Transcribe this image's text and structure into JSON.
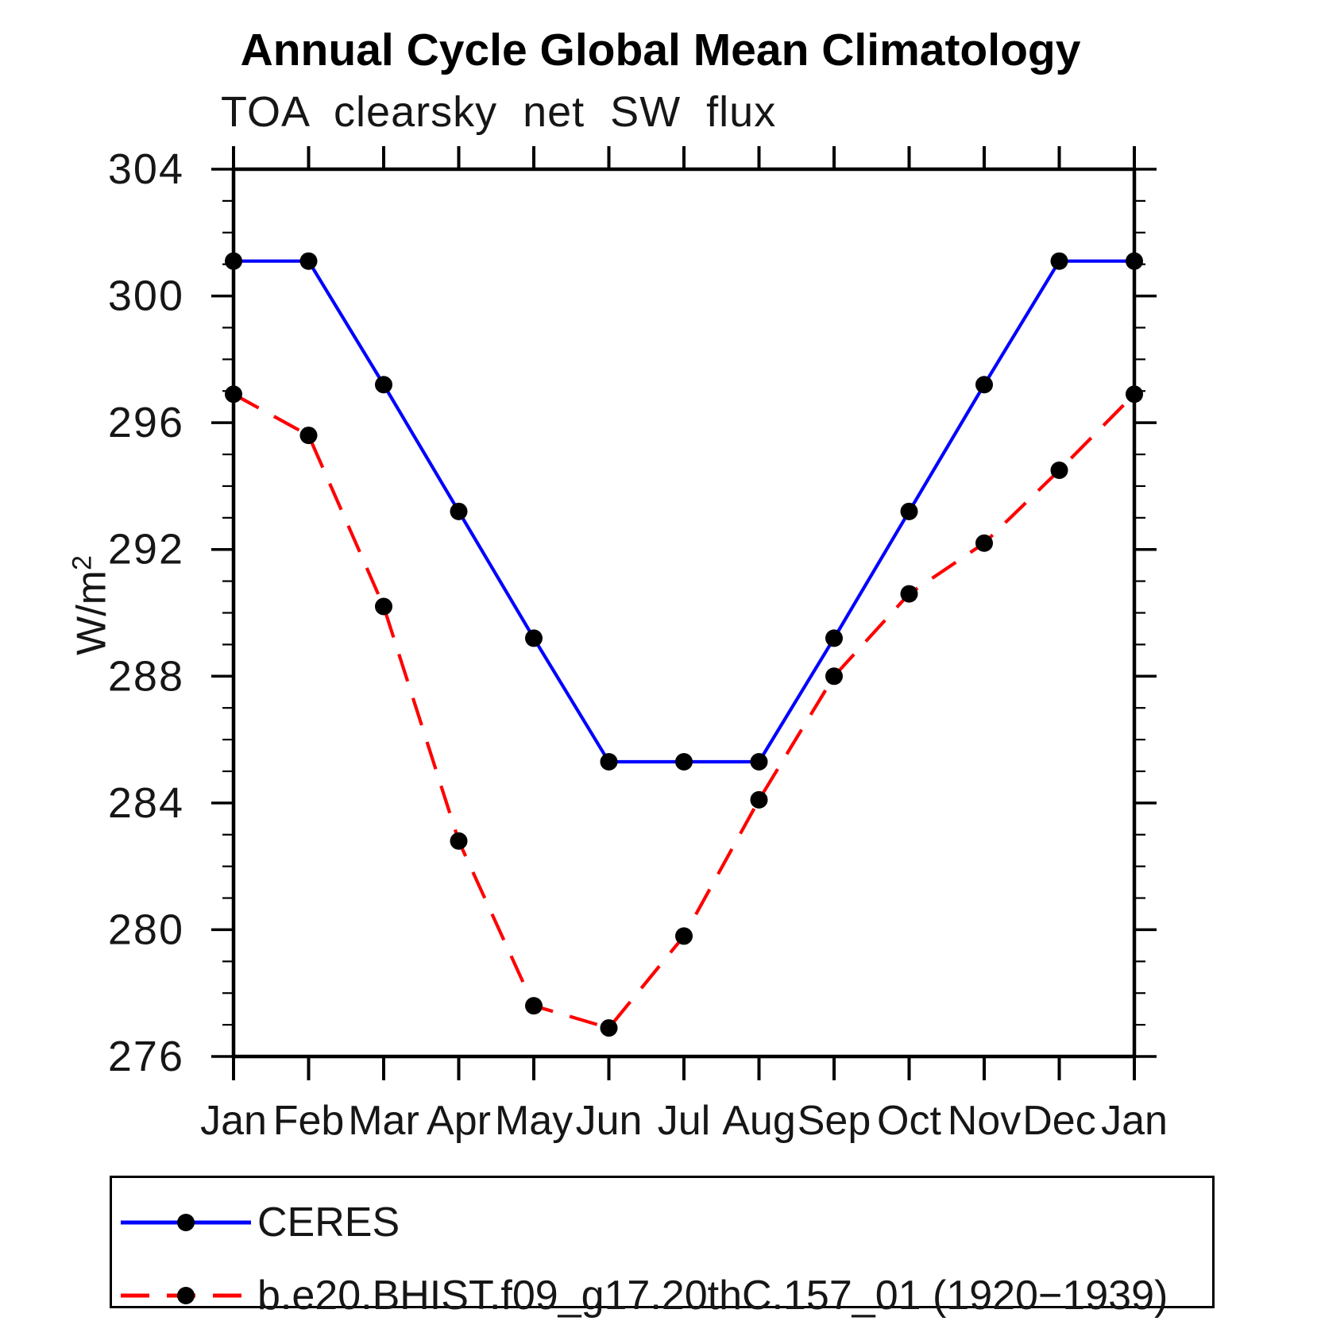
{
  "chart_data": {
    "type": "line",
    "title": "Annual Cycle Global Mean Climatology",
    "subtitle": "TOA clearsky net SW flux",
    "ylabel_base": "W/m",
    "ylabel_exponent": "2",
    "xlabel": "",
    "categories": [
      "Jan",
      "Feb",
      "Mar",
      "Apr",
      "May",
      "Jun",
      "Jul",
      "Aug",
      "Sep",
      "Oct",
      "Nov",
      "Dec",
      "Jan"
    ],
    "ylim": [
      276,
      304
    ],
    "ytick_major_interval": 4,
    "ytick_minor_interval": 1,
    "ytick_labels": [
      "276",
      "280",
      "284",
      "288",
      "292",
      "296",
      "300",
      "304"
    ],
    "grid": false,
    "legend_position": "bottom",
    "marker_color": "#000000",
    "series": [
      {
        "name": "CERES",
        "color": "#0000ff",
        "line_style": "solid",
        "marker": "filled-circle",
        "values": [
          301.1,
          301.1,
          297.2,
          293.2,
          289.2,
          285.3,
          285.3,
          285.3,
          289.2,
          293.2,
          297.2,
          301.1,
          301.1
        ]
      },
      {
        "name": "b.e20.BHIST.f09_g17.20thC.157_01 (1920−1939)",
        "color": "#ff0000",
        "line_style": "dashed",
        "marker": "filled-circle",
        "values": [
          296.9,
          295.6,
          290.2,
          282.8,
          277.6,
          276.9,
          279.8,
          284.1,
          288.0,
          290.6,
          292.2,
          294.5,
          296.9
        ]
      }
    ]
  }
}
